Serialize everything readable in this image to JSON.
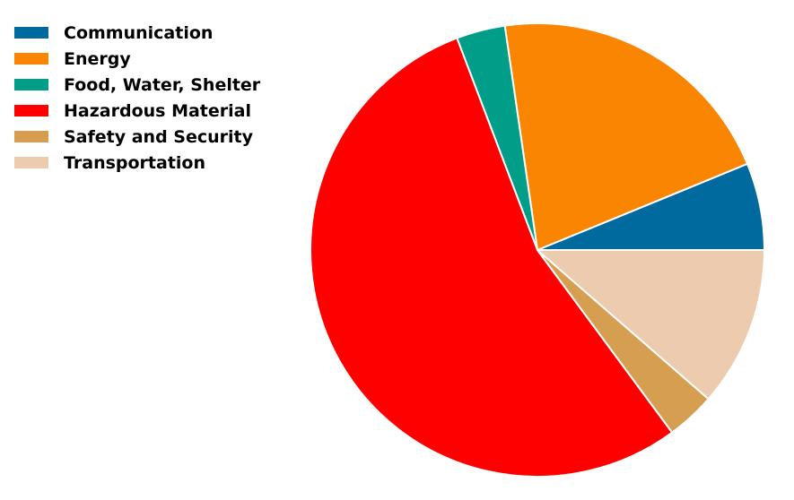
{
  "chart_data": {
    "type": "pie",
    "title": "",
    "categories": [
      "Communication",
      "Energy",
      "Food, Water, Shelter",
      "Hazardous Material",
      "Safety and Security",
      "Transportation"
    ],
    "values": [
      6.25,
      21.25,
      3.5,
      54.75,
      3.5,
      11.5
    ],
    "colors": [
      "#006a9e",
      "#fa8500",
      "#009e89",
      "#ff0000",
      "#d69e50",
      "#edcbaf"
    ],
    "start_angle_deg": 0,
    "direction": "counterclockwise",
    "legend": {
      "placement": "top-left",
      "entries": [
        "Communication",
        "Energy",
        "Food, Water, Shelter",
        "Hazardous Material",
        "Safety and Security",
        "Transportation"
      ]
    },
    "grid": false
  }
}
